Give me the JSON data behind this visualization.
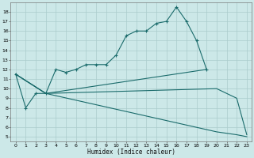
{
  "xlabel": "Humidex (Indice chaleur)",
  "bg_color": "#cce8e8",
  "grid_color": "#aacccc",
  "line_color": "#1a6b6b",
  "xlim": [
    -0.5,
    23.5
  ],
  "ylim": [
    4.5,
    19.0
  ],
  "yticks": [
    5,
    6,
    7,
    8,
    9,
    10,
    11,
    12,
    13,
    14,
    15,
    16,
    17,
    18
  ],
  "xticks": [
    0,
    1,
    2,
    3,
    4,
    5,
    6,
    7,
    8,
    9,
    10,
    11,
    12,
    13,
    14,
    15,
    16,
    17,
    18,
    19,
    20,
    21,
    22,
    23
  ],
  "line1_x": [
    0,
    1,
    2,
    3,
    4,
    5,
    6,
    7,
    8,
    9,
    10,
    11,
    12,
    13,
    14,
    15,
    16,
    17,
    18,
    19
  ],
  "line1_y": [
    11.5,
    8.0,
    9.5,
    9.5,
    12.0,
    11.7,
    12.0,
    12.5,
    12.5,
    12.5,
    13.5,
    15.5,
    16.0,
    16.0,
    16.8,
    17.0,
    18.5,
    17.0,
    15.0,
    12.0
  ],
  "line2_x": [
    0,
    3,
    19
  ],
  "line2_y": [
    11.5,
    9.5,
    12.0
  ],
  "line3_x": [
    0,
    3,
    20,
    22,
    23
  ],
  "line3_y": [
    11.5,
    9.5,
    10.0,
    9.0,
    5.2
  ],
  "line4_x": [
    0,
    3,
    20,
    22,
    23
  ],
  "line4_y": [
    11.5,
    9.5,
    5.5,
    5.2,
    5.0
  ]
}
